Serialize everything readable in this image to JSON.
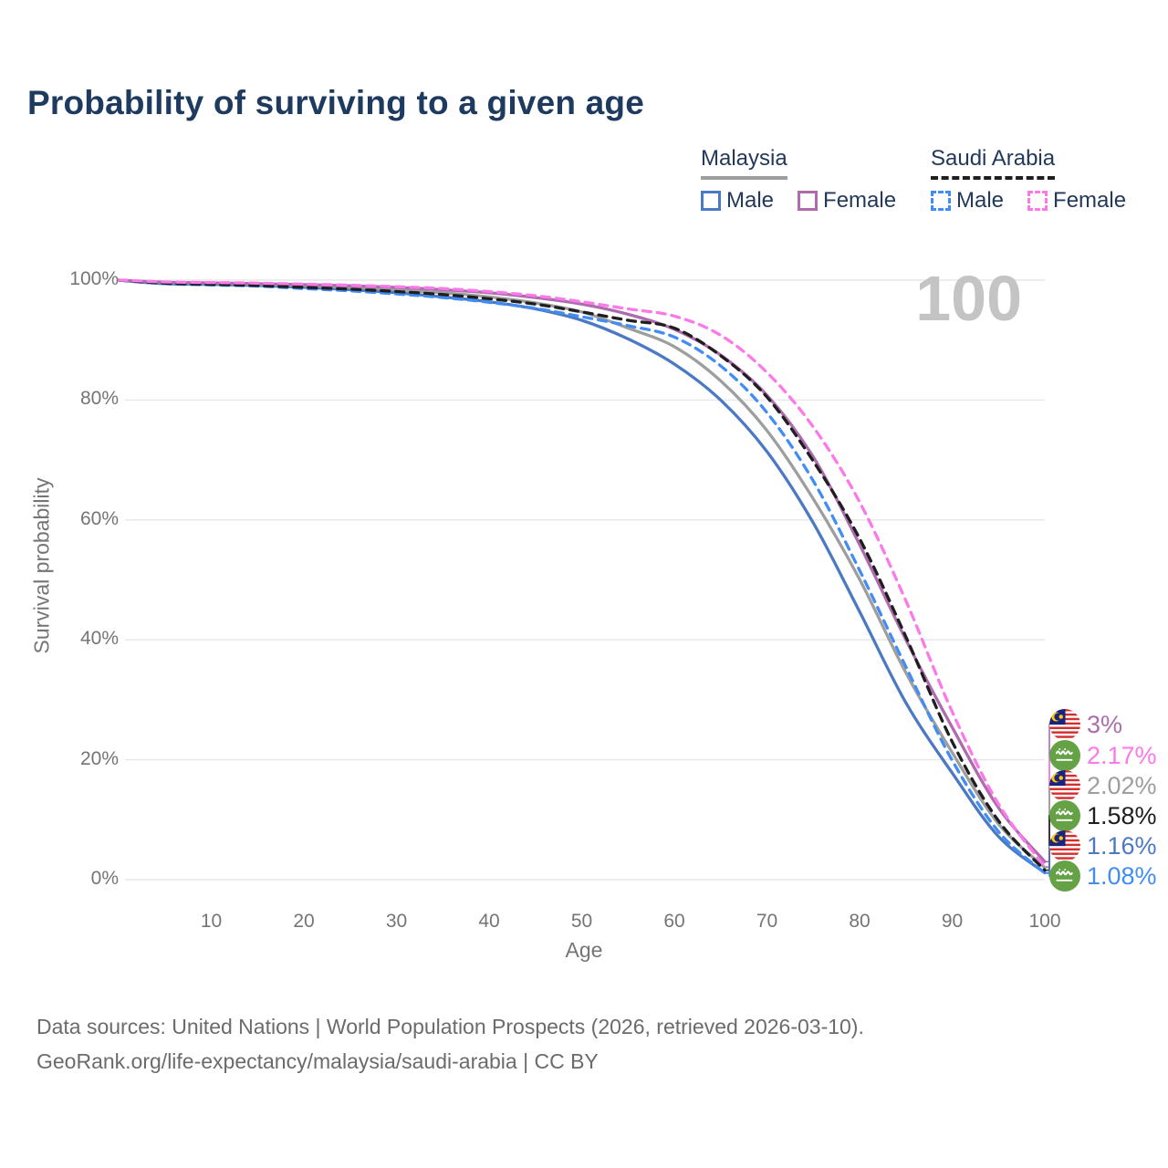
{
  "title": "Probability of surviving to a given age",
  "watermark": "100",
  "legend": {
    "groups": [
      {
        "label": "Malaysia",
        "line_style": "solid",
        "underline_color": "#9e9e9e",
        "items": [
          {
            "label": "Male",
            "color": "#4b79c4"
          },
          {
            "label": "Female",
            "color": "#ae6cae"
          }
        ]
      },
      {
        "label": "Saudi Arabia",
        "line_style": "dashed",
        "underline_color": "#1f1f1f",
        "items": [
          {
            "label": "Male",
            "color": "#418df5"
          },
          {
            "label": "Female",
            "color": "#fb79e9"
          }
        ]
      }
    ]
  },
  "chart_data": {
    "type": "line",
    "title": "Probability of surviving to a given age",
    "xlabel": "Age",
    "ylabel": "Survival probability",
    "xlim": [
      0,
      100
    ],
    "ylim": [
      0,
      100
    ],
    "grid": "horizontal",
    "x_ticks": [
      10,
      20,
      30,
      40,
      50,
      60,
      70,
      80,
      90,
      100
    ],
    "y_ticks": [
      "0%",
      "20%",
      "40%",
      "60%",
      "80%",
      "100%"
    ],
    "ages": [
      0,
      5,
      10,
      15,
      20,
      25,
      30,
      35,
      40,
      45,
      50,
      55,
      60,
      65,
      70,
      75,
      80,
      85,
      90,
      95,
      100
    ],
    "series": [
      {
        "name": "Malaysia Male",
        "country": "Malaysia",
        "sex": "Male",
        "flag": "malaysia",
        "color": "#4b79c4",
        "dashed": false,
        "end_label": "1.16%",
        "values": [
          100,
          99.4,
          99.3,
          99.1,
          98.8,
          98.4,
          97.9,
          97.2,
          96.4,
          95.2,
          93.3,
          90.2,
          86.0,
          80.0,
          71.4,
          59.5,
          44.7,
          29.5,
          17.8,
          7.2,
          1.16
        ]
      },
      {
        "name": "Malaysia Both sexes",
        "country": "Malaysia",
        "sex": "Both",
        "flag": "malaysia",
        "color": "#9e9e9e",
        "dashed": false,
        "end_label": "2.02%",
        "values": [
          100,
          99.6,
          99.5,
          99.3,
          99.1,
          98.8,
          98.4,
          97.9,
          97.2,
          96.2,
          94.7,
          92.0,
          88.9,
          83.2,
          74.9,
          63.5,
          50.1,
          34.5,
          21.2,
          9.3,
          2.02
        ]
      },
      {
        "name": "Saudi Arabia Male",
        "country": "Saudi Arabia",
        "sex": "Male",
        "flag": "saudi-arabia",
        "color": "#418df5",
        "dashed": true,
        "end_label": "1.08%",
        "values": [
          100,
          99.4,
          99.2,
          99.0,
          98.6,
          98.2,
          97.7,
          97.1,
          96.3,
          95.3,
          93.9,
          92.4,
          90.5,
          85.7,
          77.9,
          66.5,
          51.6,
          35.5,
          19.9,
          8.0,
          1.08
        ]
      },
      {
        "name": "Malaysia Female",
        "country": "Malaysia",
        "sex": "Female",
        "flag": "malaysia",
        "color": "#ae6cae",
        "dashed": false,
        "end_label": "3%",
        "values": [
          100,
          99.65,
          99.55,
          99.4,
          99.25,
          99.05,
          98.8,
          98.4,
          97.9,
          97.1,
          96.0,
          94.3,
          91.8,
          87.5,
          80.8,
          70.5,
          55.9,
          40.0,
          25.4,
          12.0,
          3.0
        ]
      },
      {
        "name": "Saudi Arabia Both sexes",
        "country": "Saudi Arabia",
        "sex": "Both",
        "flag": "saudi-arabia",
        "color": "#1f1f1f",
        "dashed": true,
        "end_label": "1.58%",
        "values": [
          100,
          99.5,
          99.3,
          99.1,
          98.8,
          98.5,
          98.1,
          97.6,
          96.9,
          96.0,
          94.7,
          93.3,
          92.0,
          87.4,
          80.5,
          69.8,
          56.9,
          40.5,
          23.0,
          9.8,
          1.58
        ]
      },
      {
        "name": "Saudi Arabia Female",
        "country": "Saudi Arabia",
        "sex": "Female",
        "flag": "saudi-arabia",
        "color": "#fb79e9",
        "dashed": true,
        "end_label": "2.17%",
        "values": [
          100,
          99.7,
          99.6,
          99.5,
          99.35,
          99.15,
          98.9,
          98.6,
          98.1,
          97.4,
          96.4,
          95.2,
          94.0,
          90.8,
          84.6,
          75.5,
          63.0,
          46.5,
          28.0,
          12.6,
          2.17
        ]
      }
    ]
  },
  "footer": {
    "line1": "Data sources: United Nations | World Population Prospects (2026, retrieved 2026-03-10).",
    "line2": "GeoRank.org/life-expectancy/malaysia/saudi-arabia | CC BY"
  }
}
